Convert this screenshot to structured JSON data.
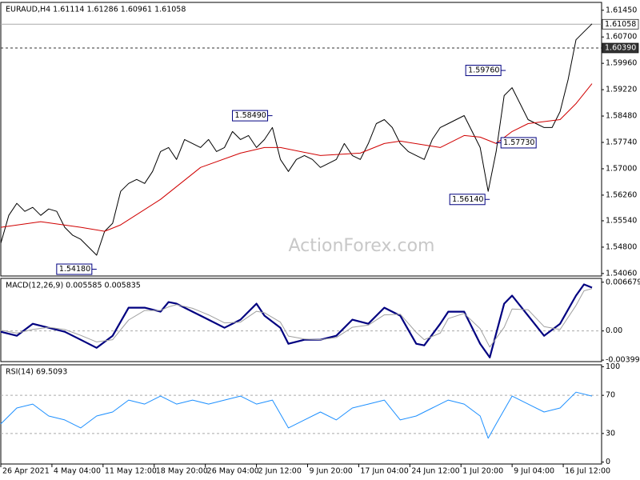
{
  "chart_data": [
    {
      "type": "line",
      "title": "EURAUD,H4  1.61114 1.61286 1.60961 1.61058",
      "watermark": "ActionForex.com",
      "xlim": [
        0,
        75.2
      ],
      "xticks": [
        {
          "value": 0,
          "label": "26 Apr 2021"
        },
        {
          "value": 6.4,
          "label": "4 May 04:00"
        },
        {
          "value": 12.8,
          "label": "11 May 12:00"
        },
        {
          "value": 19.2,
          "label": "18 May 20:00"
        },
        {
          "value": 25.6,
          "label": "26 May 04:00"
        },
        {
          "value": 32,
          "label": "2 Jun 12:00"
        },
        {
          "value": 38.4,
          "label": "9 Jun 20:00"
        },
        {
          "value": 44.8,
          "label": "17 Jun 04:00"
        },
        {
          "value": 51.2,
          "label": "24 Jun 12:00"
        },
        {
          "value": 57.6,
          "label": "1 Jul 20:00"
        },
        {
          "value": 64,
          "label": "9 Jul 04:00"
        },
        {
          "value": 70.4,
          "label": "16 Jul 12:00"
        }
      ],
      "ylim": [
        1.5399,
        1.6167
      ],
      "yticks": [
        {
          "value": 1.6145,
          "label": "1.61450"
        },
        {
          "value": 1.607,
          "label": "1.60700"
        },
        {
          "value": 1.5996,
          "label": "1.59960"
        },
        {
          "value": 1.5922,
          "label": "1.59220"
        },
        {
          "value": 1.5848,
          "label": "1.58480"
        },
        {
          "value": 1.5774,
          "label": "1.57740"
        },
        {
          "value": 1.57,
          "label": "1.57000"
        },
        {
          "value": 1.5626,
          "label": "1.56260"
        },
        {
          "value": 1.5554,
          "label": "1.55540"
        },
        {
          "value": 1.548,
          "label": "1.54800"
        },
        {
          "value": 1.5406,
          "label": "1.54060"
        }
      ],
      "series": [
        {
          "color": "#000000",
          "x": [
            0,
            1,
            2,
            3,
            4,
            5,
            6,
            7,
            8,
            9,
            10,
            11,
            12,
            13,
            14,
            15,
            16,
            17,
            18,
            19,
            20,
            21,
            22,
            23,
            24,
            25,
            26,
            27,
            28,
            29,
            30,
            31,
            32,
            33,
            34,
            35,
            36,
            37,
            38,
            39,
            40,
            41,
            42,
            43,
            44,
            45,
            46,
            47,
            48,
            49,
            50,
            51,
            52,
            53,
            54,
            55,
            56,
            57,
            58,
            59,
            60,
            61,
            62,
            63,
            64,
            65,
            66,
            67,
            68,
            69,
            70,
            71,
            72,
            73,
            74
          ],
          "values": [
            1.54909,
            1.55693,
            1.56029,
            1.55805,
            1.55917,
            1.55693,
            1.55872,
            1.55805,
            1.55357,
            1.55133,
            1.55021,
            1.54797,
            1.54573,
            1.55245,
            1.55469,
            1.56365,
            1.56589,
            1.56701,
            1.56589,
            1.56925,
            1.57485,
            1.57597,
            1.57261,
            1.57821,
            1.57709,
            1.57597,
            1.57821,
            1.57485,
            1.57597,
            1.58045,
            1.57821,
            1.57933,
            1.57597,
            1.57821,
            1.58157,
            1.57261,
            1.56925,
            1.57261,
            1.57373,
            1.57261,
            1.57037,
            1.57149,
            1.57261,
            1.57709,
            1.57373,
            1.57261,
            1.57709,
            1.58269,
            1.58381,
            1.58157,
            1.57709,
            1.57485,
            1.57373,
            1.57261,
            1.57821,
            1.58157,
            1.58269,
            1.58381,
            1.58493,
            1.58045,
            1.57597,
            1.56365,
            1.57485,
            1.59053,
            1.59277,
            1.58829,
            1.58381,
            1.58269,
            1.58157,
            1.58157,
            1.58605,
            1.59501,
            1.60621,
            1.60845,
            1.61069
          ]
        },
        {
          "color": "#d00000",
          "x": [
            0,
            5,
            10,
            13,
            15,
            20,
            25,
            30,
            33,
            35,
            40,
            45,
            48,
            50,
            55,
            58,
            60,
            62,
            64,
            66,
            70,
            72,
            74
          ],
          "values": [
            1.55357,
            1.55514,
            1.55357,
            1.55245,
            1.55424,
            1.56141,
            1.57037,
            1.5744,
            1.57597,
            1.57597,
            1.57373,
            1.5744,
            1.57709,
            1.57776,
            1.57597,
            1.57933,
            1.57888,
            1.57709,
            1.58045,
            1.58269,
            1.58381,
            1.58829,
            1.59389
          ]
        }
      ],
      "price_lines": [
        {
          "value": 1.61058,
          "label": "1.61058"
        },
        {
          "value": 1.6039,
          "label": "1.60390"
        }
      ],
      "annotations": [
        {
          "value": 1.5418,
          "label": "1.54180",
          "x": 12
        },
        {
          "value": 1.5849,
          "label": "1.58490",
          "x": 34
        },
        {
          "value": 1.5976,
          "label": "1.59760",
          "x": 63.2
        },
        {
          "value": 1.5614,
          "label": "1.56140",
          "x": 61.2
        },
        {
          "value": 1.5773,
          "label": "1.57730",
          "x": 62
        }
      ]
    },
    {
      "type": "line",
      "title": "MACD(12,26,9) 0.005585 0.005835",
      "ylim": [
        -0.0042,
        0.0072
      ],
      "yticks": [
        0.006679,
        {
          "value": 0,
          "label": "0.00"
        },
        -0.003994
      ],
      "levels": [
        0
      ],
      "series": [
        {
          "color": "#000080",
          "x": [
            0,
            2,
            4,
            6,
            8,
            10,
            12,
            14,
            16,
            18,
            20,
            21,
            22,
            24,
            26,
            28,
            30,
            32,
            33,
            35,
            36,
            38,
            40,
            42,
            44,
            46,
            48,
            50,
            52,
            53,
            55,
            56,
            58,
            60,
            61.2,
            63,
            64,
            66,
            68,
            70,
            72,
            73,
            74
          ],
          "values": [
            -0.00011,
            -0.00066,
            0.00099,
            0.00044,
            -0.00011,
            -0.00121,
            -0.00231,
            -0.00066,
            0.00319,
            0.00319,
            0.00264,
            0.00396,
            0.00374,
            0.00264,
            0.00154,
            0.00044,
            0.00154,
            0.00374,
            0.00209,
            0.00044,
            -0.00176,
            -0.00121,
            -0.00121,
            -0.00066,
            0.00154,
            0.00099,
            0.00319,
            0.00209,
            -0.00176,
            -0.00198,
            0.00099,
            0.00264,
            0.00264,
            -0.00176,
            -0.00363,
            0.00374,
            0.00484,
            0.00209,
            -0.00066,
            0.00099,
            0.00484,
            0.00638,
            0.00594
          ]
        },
        {
          "color": "#a0a0a0",
          "x": [
            0,
            2,
            4,
            6,
            8,
            10,
            12,
            14,
            16,
            18,
            20,
            21,
            22,
            24,
            26,
            28,
            30,
            32,
            33,
            35,
            36,
            38,
            40,
            42,
            44,
            46,
            48,
            50,
            52,
            53,
            55,
            56,
            58,
            60,
            61.2,
            63,
            64,
            66,
            68,
            70,
            72,
            73,
            74
          ],
          "values": [
            0.0001,
            -0.0003,
            0.0002,
            0.0005,
            0.0002,
            -0.0006,
            -0.0015,
            -0.0012,
            0.0015,
            0.0028,
            0.0028,
            0.0033,
            0.0036,
            0.0031,
            0.0022,
            0.0011,
            0.0012,
            0.0027,
            0.0025,
            0.0012,
            -0.0007,
            -0.0011,
            -0.0012,
            -0.0009,
            0.0005,
            0.0008,
            0.0022,
            0.0023,
            -0.0002,
            -0.0012,
            -0.0003,
            0.0017,
            0.0024,
            0.0003,
            -0.0022,
            0.0005,
            0.003,
            0.0029,
            0.0006,
            0.0002,
            0.0035,
            0.0055,
            0.0058
          ]
        }
      ]
    },
    {
      "type": "line",
      "title": "RSI(14) 69.5093",
      "ylim": [
        -2,
        102
      ],
      "yticks": [
        100,
        70,
        30,
        0
      ],
      "levels": [
        70,
        30
      ],
      "series": [
        {
          "color": "#1e90ff",
          "x": [
            0,
            2,
            4,
            6,
            8,
            10,
            12,
            14,
            16,
            18,
            20,
            22,
            24,
            26,
            28,
            30,
            32,
            34,
            36,
            38,
            40,
            42,
            44,
            46,
            48,
            50,
            52,
            54,
            56,
            58,
            60,
            61,
            62,
            64,
            66,
            68,
            70,
            72,
            74
          ],
          "values": [
            40,
            56.7,
            60.8,
            48.3,
            44.2,
            35.8,
            48.3,
            52.5,
            65,
            60.8,
            69.2,
            60.8,
            65,
            60.8,
            65,
            69.2,
            60.8,
            65,
            35.8,
            44.2,
            52.5,
            44.2,
            56.7,
            60.8,
            65,
            44.2,
            48.3,
            56.7,
            65,
            60.8,
            48.3,
            25,
            40,
            69.2,
            60.8,
            52.5,
            56.7,
            73.3,
            69.2
          ]
        }
      ]
    }
  ]
}
